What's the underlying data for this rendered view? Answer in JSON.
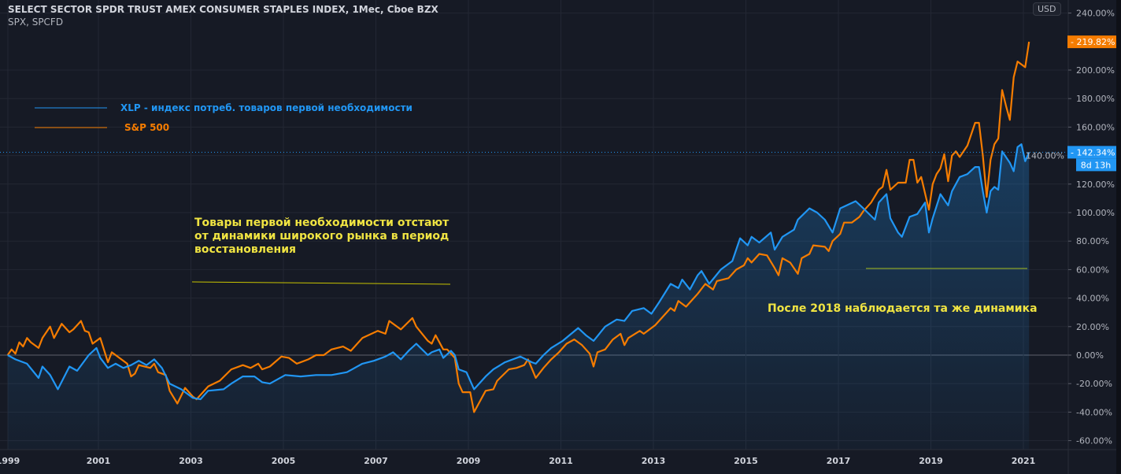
{
  "header": {
    "title": "SELECT SECTOR SPDR TRUST AMEX CONSUMER STAPLES INDEX, 1Мес, Cboe BZX",
    "subtitle": "SPX, SPCFD"
  },
  "currency_button": "USD",
  "legend": [
    {
      "label": "XLP - индекс потреб. товаров первой необходимости",
      "color": "#2196f3"
    },
    {
      "label": "S&P 500",
      "color": "#f57c00"
    }
  ],
  "annotations": {
    "lag_note": "Товары первой необходимости отстают от динамики широкого рынка в период восстановления",
    "after_2018_note": "После 2018 наблюдается та же динамика",
    "color": "#f0e442"
  },
  "last_values": {
    "xlp_label": "142.34%",
    "spx_label": "219.82%",
    "countdown": "8d 13h"
  },
  "chart_data": {
    "type": "line",
    "title": "SELECT SECTOR SPDR TRUST AMEX CONSUMER STAPLES INDEX, 1Мес, Cboe BZX",
    "x_ticks": [
      "1999",
      "2001",
      "2003",
      "2005",
      "2007",
      "2009",
      "2011",
      "2013",
      "2015",
      "2017",
      "2019",
      "2021"
    ],
    "y_ticks": [
      "240.00%",
      "200.00%",
      "180.00%",
      "160.00%",
      "140.00%",
      "120.00%",
      "100.00%",
      "80.00%",
      "60.00%",
      "40.00%",
      "20.00%",
      "0.00%",
      "-20.00%",
      "-40.00%",
      "-60.00%"
    ],
    "ylim": [
      -65,
      245
    ],
    "y_unit": "%",
    "grid": true,
    "series": [
      {
        "name": "XLP - индекс потреб. товаров первой необходимости",
        "color": "#2196f3",
        "area_fill": true,
        "points": [
          [
            "1999-01",
            0
          ],
          [
            "1999-03",
            -3
          ],
          [
            "1999-06",
            -6
          ],
          [
            "1999-09",
            -16
          ],
          [
            "1999-10",
            -8
          ],
          [
            "1999-12",
            -14
          ],
          [
            "2000-02",
            -24
          ],
          [
            "2000-05",
            -8
          ],
          [
            "2000-07",
            -11
          ],
          [
            "2000-10",
            0
          ],
          [
            "2000-12",
            5
          ],
          [
            "2001-01",
            -2
          ],
          [
            "2001-03",
            -9
          ],
          [
            "2001-05",
            -6
          ],
          [
            "2001-07",
            -9
          ],
          [
            "2001-09",
            -7
          ],
          [
            "2001-11",
            -4
          ],
          [
            "2002-01",
            -7
          ],
          [
            "2002-03",
            -3
          ],
          [
            "2002-05",
            -9
          ],
          [
            "2002-07",
            -20
          ],
          [
            "2002-10",
            -24
          ],
          [
            "2003-01",
            -30
          ],
          [
            "2003-03",
            -31
          ],
          [
            "2003-05",
            -25
          ],
          [
            "2003-09",
            -24
          ],
          [
            "2003-11",
            -20
          ],
          [
            "2004-02",
            -15
          ],
          [
            "2004-05",
            -15
          ],
          [
            "2004-07",
            -19
          ],
          [
            "2004-09",
            -20
          ],
          [
            "2005-01",
            -14
          ],
          [
            "2005-05",
            -15
          ],
          [
            "2005-09",
            -14
          ],
          [
            "2006-01",
            -14
          ],
          [
            "2006-05",
            -12
          ],
          [
            "2006-07",
            -9
          ],
          [
            "2006-09",
            -6
          ],
          [
            "2006-12",
            -4
          ],
          [
            "2007-03",
            -1
          ],
          [
            "2007-05",
            2
          ],
          [
            "2007-07",
            -3
          ],
          [
            "2007-09",
            3
          ],
          [
            "2007-11",
            8
          ],
          [
            "2008-02",
            0
          ],
          [
            "2008-03",
            2
          ],
          [
            "2008-05",
            4
          ],
          [
            "2008-06",
            -2
          ],
          [
            "2008-08",
            3
          ],
          [
            "2008-09",
            0
          ],
          [
            "2008-10",
            -10
          ],
          [
            "2008-12",
            -12
          ],
          [
            "2009-02",
            -24
          ],
          [
            "2009-05",
            -15
          ],
          [
            "2009-07",
            -10
          ],
          [
            "2009-10",
            -5
          ],
          [
            "2010-02",
            -1
          ],
          [
            "2010-05",
            -5
          ],
          [
            "2010-06",
            -6
          ],
          [
            "2010-08",
            0
          ],
          [
            "2010-10",
            5
          ],
          [
            "2011-01",
            10
          ],
          [
            "2011-05",
            19
          ],
          [
            "2011-07",
            14
          ],
          [
            "2011-09",
            10
          ],
          [
            "2011-12",
            20
          ],
          [
            "2012-03",
            25
          ],
          [
            "2012-05",
            24
          ],
          [
            "2012-07",
            31
          ],
          [
            "2012-10",
            33
          ],
          [
            "2012-12",
            29
          ],
          [
            "2013-02",
            37
          ],
          [
            "2013-05",
            50
          ],
          [
            "2013-07",
            47
          ],
          [
            "2013-08",
            53
          ],
          [
            "2013-10",
            46
          ],
          [
            "2013-12",
            56
          ],
          [
            "2014-01",
            59
          ],
          [
            "2014-03",
            50
          ],
          [
            "2014-06",
            60
          ],
          [
            "2014-09",
            66
          ],
          [
            "2014-11",
            82
          ],
          [
            "2015-01",
            77
          ],
          [
            "2015-02",
            83
          ],
          [
            "2015-04",
            79
          ],
          [
            "2015-07",
            86
          ],
          [
            "2015-08",
            74
          ],
          [
            "2015-10",
            83
          ],
          [
            "2016-01",
            88
          ],
          [
            "2016-02",
            95
          ],
          [
            "2016-05",
            103
          ],
          [
            "2016-07",
            100
          ],
          [
            "2016-09",
            95
          ],
          [
            "2016-11",
            86
          ],
          [
            "2017-01",
            103
          ],
          [
            "2017-05",
            108
          ],
          [
            "2017-07",
            103
          ],
          [
            "2017-10",
            95
          ],
          [
            "2017-11",
            107
          ],
          [
            "2018-01",
            113
          ],
          [
            "2018-02",
            96
          ],
          [
            "2018-04",
            86
          ],
          [
            "2018-05",
            83
          ],
          [
            "2018-07",
            97
          ],
          [
            "2018-09",
            99
          ],
          [
            "2018-11",
            107
          ],
          [
            "2018-12",
            86
          ],
          [
            "2019-01",
            96
          ],
          [
            "2019-03",
            113
          ],
          [
            "2019-05",
            105
          ],
          [
            "2019-06",
            115
          ],
          [
            "2019-08",
            125
          ],
          [
            "2019-10",
            127
          ],
          [
            "2019-12",
            132
          ],
          [
            "2020-01",
            132
          ],
          [
            "2020-02",
            115
          ],
          [
            "2020-03",
            100
          ],
          [
            "2020-04",
            115
          ],
          [
            "2020-05",
            118
          ],
          [
            "2020-06",
            116
          ],
          [
            "2020-07",
            143
          ],
          [
            "2020-09",
            135
          ],
          [
            "2020-10",
            129
          ],
          [
            "2020-11",
            146
          ],
          [
            "2020-12",
            148
          ],
          [
            "2021-01",
            136
          ],
          [
            "2021-02",
            142.34
          ]
        ]
      },
      {
        "name": "S&P 500",
        "color": "#f57c00",
        "area_fill": false,
        "points": [
          [
            "1999-01",
            0
          ],
          [
            "1999-02",
            4
          ],
          [
            "1999-03",
            1
          ],
          [
            "1999-04",
            9
          ],
          [
            "1999-05",
            6
          ],
          [
            "1999-06",
            12
          ],
          [
            "1999-07",
            9
          ],
          [
            "1999-09",
            5
          ],
          [
            "1999-10",
            12
          ],
          [
            "1999-12",
            20
          ],
          [
            "2000-01",
            12
          ],
          [
            "2000-03",
            22
          ],
          [
            "2000-05",
            16
          ],
          [
            "2000-06",
            18
          ],
          [
            "2000-08",
            24
          ],
          [
            "2000-09",
            17
          ],
          [
            "2000-10",
            16
          ],
          [
            "2000-11",
            8
          ],
          [
            "2001-01",
            12
          ],
          [
            "2001-03",
            -5
          ],
          [
            "2001-04",
            2
          ],
          [
            "2001-06",
            -2
          ],
          [
            "2001-08",
            -6
          ],
          [
            "2001-09",
            -15
          ],
          [
            "2001-10",
            -13
          ],
          [
            "2001-11",
            -7
          ],
          [
            "2002-02",
            -9
          ],
          [
            "2002-03",
            -6
          ],
          [
            "2002-04",
            -12
          ],
          [
            "2002-06",
            -14
          ],
          [
            "2002-07",
            -25
          ],
          [
            "2002-09",
            -34
          ],
          [
            "2002-11",
            -23
          ],
          [
            "2003-01",
            -29
          ],
          [
            "2003-02",
            -31
          ],
          [
            "2003-04",
            -25
          ],
          [
            "2003-05",
            -22
          ],
          [
            "2003-08",
            -18
          ],
          [
            "2003-11",
            -10
          ],
          [
            "2004-02",
            -7
          ],
          [
            "2004-04",
            -9
          ],
          [
            "2004-06",
            -6
          ],
          [
            "2004-07",
            -10
          ],
          [
            "2004-09",
            -8
          ],
          [
            "2004-12",
            -1
          ],
          [
            "2005-02",
            -2
          ],
          [
            "2005-04",
            -6
          ],
          [
            "2005-07",
            -3
          ],
          [
            "2005-09",
            0
          ],
          [
            "2005-11",
            0
          ],
          [
            "2006-01",
            4
          ],
          [
            "2006-04",
            6
          ],
          [
            "2006-06",
            3
          ],
          [
            "2006-09",
            12
          ],
          [
            "2007-01",
            17
          ],
          [
            "2007-03",
            15
          ],
          [
            "2007-04",
            24
          ],
          [
            "2007-07",
            18
          ],
          [
            "2007-10",
            26
          ],
          [
            "2007-11",
            20
          ],
          [
            "2008-02",
            10
          ],
          [
            "2008-03",
            8
          ],
          [
            "2008-04",
            14
          ],
          [
            "2008-06",
            4
          ],
          [
            "2008-07",
            4
          ],
          [
            "2008-09",
            -2
          ],
          [
            "2008-10",
            -20
          ],
          [
            "2008-11",
            -26
          ],
          [
            "2009-01",
            -26
          ],
          [
            "2009-02",
            -40
          ],
          [
            "2009-05",
            -25
          ],
          [
            "2009-07",
            -24
          ],
          [
            "2009-08",
            -18
          ],
          [
            "2009-11",
            -10
          ],
          [
            "2010-01",
            -9
          ],
          [
            "2010-03",
            -7
          ],
          [
            "2010-04",
            -3
          ],
          [
            "2010-06",
            -16
          ],
          [
            "2010-08",
            -9
          ],
          [
            "2010-10",
            -3
          ],
          [
            "2010-12",
            2
          ],
          [
            "2011-02",
            8
          ],
          [
            "2011-04",
            11
          ],
          [
            "2011-06",
            7
          ],
          [
            "2011-08",
            1
          ],
          [
            "2011-09",
            -8
          ],
          [
            "2011-10",
            2
          ],
          [
            "2011-12",
            4
          ],
          [
            "2012-02",
            11
          ],
          [
            "2012-04",
            15
          ],
          [
            "2012-05",
            7
          ],
          [
            "2012-06",
            12
          ],
          [
            "2012-09",
            17
          ],
          [
            "2012-10",
            15
          ],
          [
            "2013-01",
            21
          ],
          [
            "2013-03",
            27
          ],
          [
            "2013-05",
            33
          ],
          [
            "2013-06",
            31
          ],
          [
            "2013-07",
            38
          ],
          [
            "2013-09",
            34
          ],
          [
            "2013-12",
            43
          ],
          [
            "2014-02",
            50
          ],
          [
            "2014-04",
            46
          ],
          [
            "2014-05",
            52
          ],
          [
            "2014-08",
            54
          ],
          [
            "2014-10",
            60
          ],
          [
            "2014-12",
            63
          ],
          [
            "2015-01",
            68
          ],
          [
            "2015-02",
            65
          ],
          [
            "2015-04",
            71
          ],
          [
            "2015-06",
            70
          ],
          [
            "2015-08",
            61
          ],
          [
            "2015-09",
            56
          ],
          [
            "2015-10",
            68
          ],
          [
            "2015-12",
            65
          ],
          [
            "2016-02",
            57
          ],
          [
            "2016-03",
            68
          ],
          [
            "2016-05",
            71
          ],
          [
            "2016-06",
            77
          ],
          [
            "2016-09",
            76
          ],
          [
            "2016-10",
            73
          ],
          [
            "2016-11",
            80
          ],
          [
            "2017-01",
            85
          ],
          [
            "2017-02",
            93
          ],
          [
            "2017-04",
            93
          ],
          [
            "2017-06",
            97
          ],
          [
            "2017-07",
            101
          ],
          [
            "2017-09",
            107
          ],
          [
            "2017-11",
            116
          ],
          [
            "2017-12",
            118
          ],
          [
            "2018-01",
            130
          ],
          [
            "2018-02",
            116
          ],
          [
            "2018-04",
            121
          ],
          [
            "2018-06",
            121
          ],
          [
            "2018-07",
            137
          ],
          [
            "2018-08",
            137
          ],
          [
            "2018-09",
            121
          ],
          [
            "2018-10",
            125
          ],
          [
            "2018-12",
            102
          ],
          [
            "2019-01",
            120
          ],
          [
            "2019-02",
            127
          ],
          [
            "2019-03",
            131
          ],
          [
            "2019-04",
            141
          ],
          [
            "2019-05",
            122
          ],
          [
            "2019-06",
            140
          ],
          [
            "2019-07",
            143
          ],
          [
            "2019-08",
            139
          ],
          [
            "2019-10",
            147
          ],
          [
            "2019-12",
            163
          ],
          [
            "2020-01",
            163
          ],
          [
            "2020-02",
            140
          ],
          [
            "2020-03",
            111
          ],
          [
            "2020-04",
            137
          ],
          [
            "2020-05",
            148
          ],
          [
            "2020-06",
            152
          ],
          [
            "2020-07",
            186
          ],
          [
            "2020-08",
            175
          ],
          [
            "2020-09",
            165
          ],
          [
            "2020-10",
            195
          ],
          [
            "2020-11",
            206
          ],
          [
            "2021-01",
            202
          ],
          [
            "2021-02",
            219.82
          ]
        ]
      }
    ]
  }
}
